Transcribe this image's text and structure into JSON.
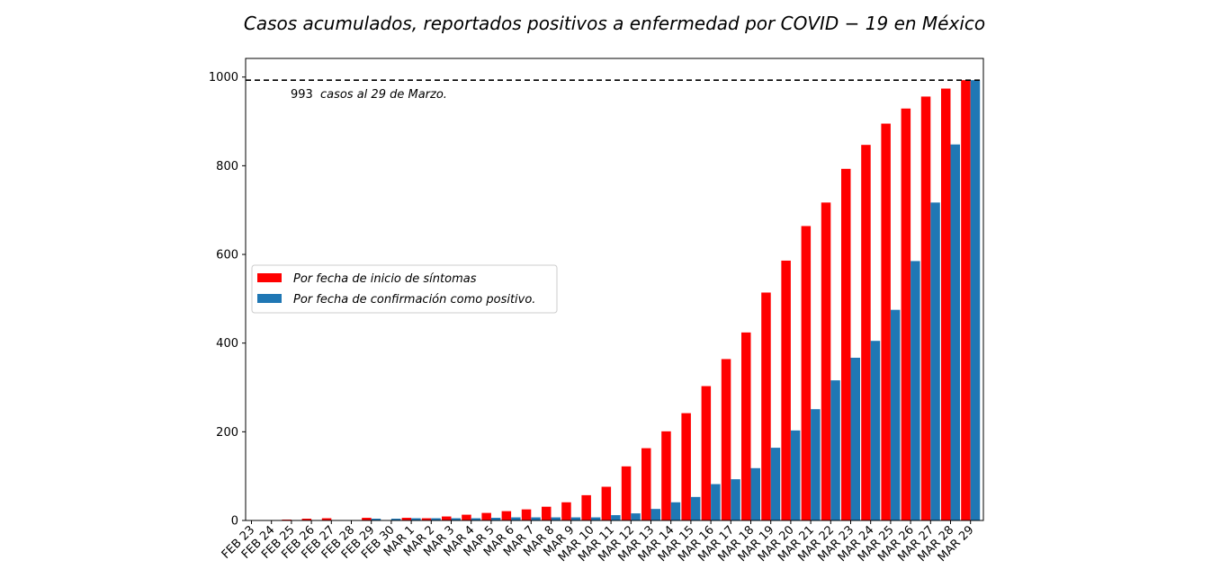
{
  "chart_data": {
    "type": "bar",
    "title": "Casos acumulados, reportados positivos a enfermedad por COVID − 19 en México",
    "xlabel": "",
    "ylabel": "",
    "categories": [
      "FEB 23",
      "FEB 24",
      "FEB 25",
      "FEB 26",
      "FEB 27",
      "FEB 28",
      "FEB 29",
      "FEB 30",
      "MAR 1",
      "MAR 2",
      "MAR 3",
      "MAR 4",
      "MAR 5",
      "MAR 6",
      "MAR 7",
      "MAR 8",
      "MAR 9",
      "MAR 10",
      "MAR 11",
      "MAR 12",
      "MAR 13",
      "MAR 14",
      "MAR 15",
      "MAR 16",
      "MAR 17",
      "MAR 18",
      "MAR 19",
      "MAR 20",
      "MAR 21",
      "MAR 22",
      "MAR 23",
      "MAR 24",
      "MAR 25",
      "MAR 26",
      "MAR 27",
      "MAR 28",
      "MAR 29"
    ],
    "series": [
      {
        "name": "Por fecha de inicio de síntomas",
        "color": "#ff0000",
        "values": [
          1,
          0,
          2,
          4,
          5,
          1,
          6,
          0,
          6,
          5,
          9,
          13,
          17,
          21,
          25,
          31,
          41,
          57,
          76,
          122,
          163,
          201,
          242,
          303,
          364,
          424,
          514,
          586,
          664,
          717,
          793,
          847,
          895,
          929,
          956,
          974,
          993
        ]
      },
      {
        "name": "Por fecha de confirmación como positivo.",
        "color": "#1f77b4",
        "values": [
          0,
          0,
          0,
          0,
          0,
          0,
          4,
          4,
          5,
          5,
          5,
          5,
          6,
          7,
          7,
          7,
          7,
          7,
          12,
          16,
          26,
          41,
          53,
          82,
          93,
          118,
          164,
          203,
          251,
          316,
          367,
          405,
          475,
          585,
          717,
          848,
          993
        ]
      }
    ],
    "yticks": [
      0,
      200,
      400,
      600,
      800,
      1000
    ],
    "ylim": [
      0,
      1042
    ],
    "grid": false,
    "legend_position": "center-left",
    "reference_line": {
      "value": 993,
      "style": "dashed",
      "color": "#000000"
    },
    "annotation": {
      "number": "993",
      "text": "casos al 29 de Marzo."
    }
  }
}
